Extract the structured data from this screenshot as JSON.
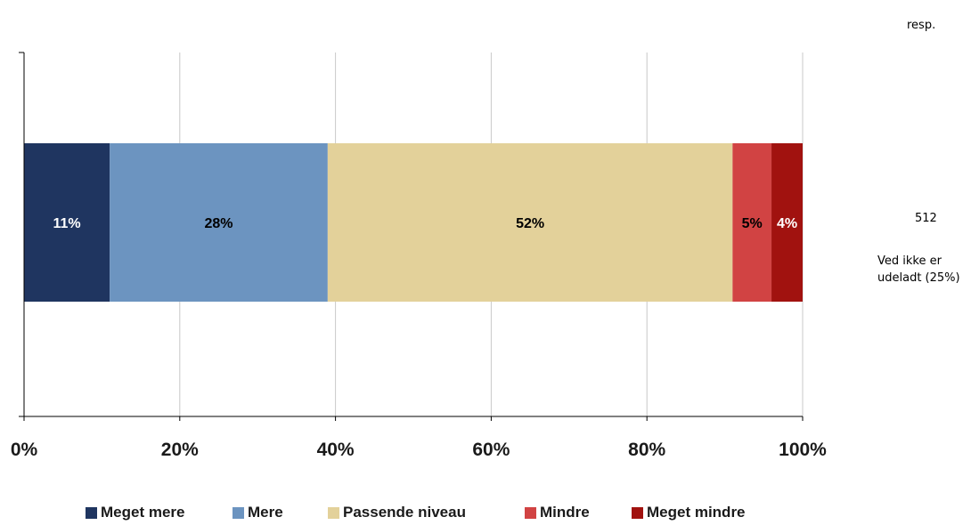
{
  "chart_data": {
    "type": "bar",
    "orientation": "horizontal",
    "stacked": true,
    "categories": [
      ""
    ],
    "series": [
      {
        "name": "Meget mere",
        "values": [
          11
        ],
        "label": "11%",
        "color": "#1f3560",
        "label_color": "#ffffff"
      },
      {
        "name": "Mere",
        "values": [
          28
        ],
        "label": "28%",
        "color": "#6c94c0",
        "label_color": "#000000"
      },
      {
        "name": "Passende niveau",
        "values": [
          52
        ],
        "label": "52%",
        "color": "#e3d19a",
        "label_color": "#000000"
      },
      {
        "name": "Mindre",
        "values": [
          5
        ],
        "label": "5%",
        "color": "#d14343",
        "label_color": "#000000"
      },
      {
        "name": "Meget mindre",
        "values": [
          4
        ],
        "label": "4%",
        "color": "#a1120f",
        "label_color": "#ffffff"
      }
    ],
    "xlim": [
      0,
      100
    ],
    "x_ticks": [
      0,
      20,
      40,
      60,
      80,
      100
    ],
    "x_tick_labels": [
      "0%",
      "20%",
      "40%",
      "60%",
      "80%",
      "100%"
    ],
    "grid": "vertical",
    "legend_position": "bottom"
  },
  "side_panel": {
    "resp_label": "resp.",
    "n_value": "512",
    "missing_note": "Ved ikke er udeladt (25%)"
  }
}
